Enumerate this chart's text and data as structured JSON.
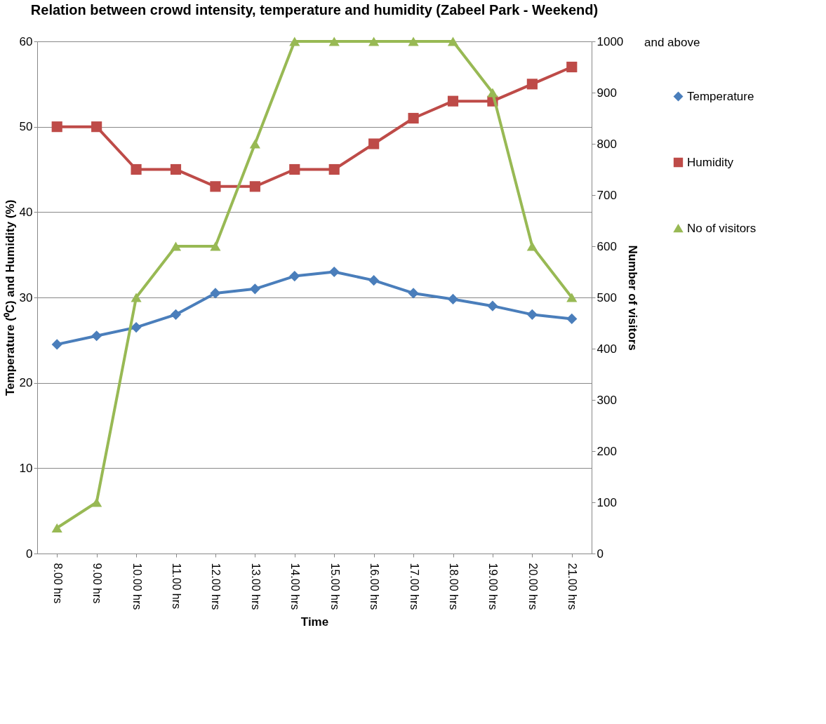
{
  "chart_data": {
    "type": "line",
    "title": "Relation between crowd intensity, temperature and humidity (Zabeel Park - Weekend)",
    "xlabel": "Time",
    "ylabel": "Temperature (⁰C) and Humidity (%)",
    "y2label": "Number of visitors",
    "categories": [
      "8.00 hrs",
      "9.00 hrs",
      "10.00 hrs",
      "11.00 hrs",
      "12.00 hrs",
      "13.00 hrs",
      "14.00 hrs",
      "15.00 hrs",
      "16.00 hrs",
      "17.00 hrs",
      "18.00 hrs",
      "19.00 hrs",
      "20.00 hrs",
      "21.00 hrs"
    ],
    "series": [
      {
        "name": "Temperature",
        "color": "#4a7ebb",
        "marker": "diamond",
        "values": [
          24.5,
          25.5,
          26.5,
          28,
          30.5,
          31,
          32.5,
          33,
          32,
          30.5,
          29.8,
          29,
          28,
          27.5
        ]
      },
      {
        "name": "Humidity",
        "color": "#be4b48",
        "marker": "square",
        "values": [
          50,
          50,
          45,
          45,
          43,
          43,
          45,
          45,
          48,
          51,
          53,
          53,
          55,
          57
        ]
      },
      {
        "name": "No of visitors",
        "color": "#98b954",
        "marker": "triangle",
        "axis": "y2",
        "values": [
          50,
          100,
          500,
          600,
          600,
          800,
          1000,
          1000,
          1000,
          1000,
          1000,
          900,
          600,
          500
        ]
      }
    ],
    "ylim": [
      0,
      60
    ],
    "yticks": [
      0,
      10,
      20,
      30,
      40,
      50,
      60
    ],
    "y2lim": [
      0,
      1000
    ],
    "y2ticks": [
      0,
      100,
      200,
      300,
      400,
      500,
      600,
      700,
      800,
      900,
      1000
    ],
    "annotations": [
      "and above"
    ],
    "grid": "y",
    "legend": "right",
    "line_style": "solid"
  }
}
